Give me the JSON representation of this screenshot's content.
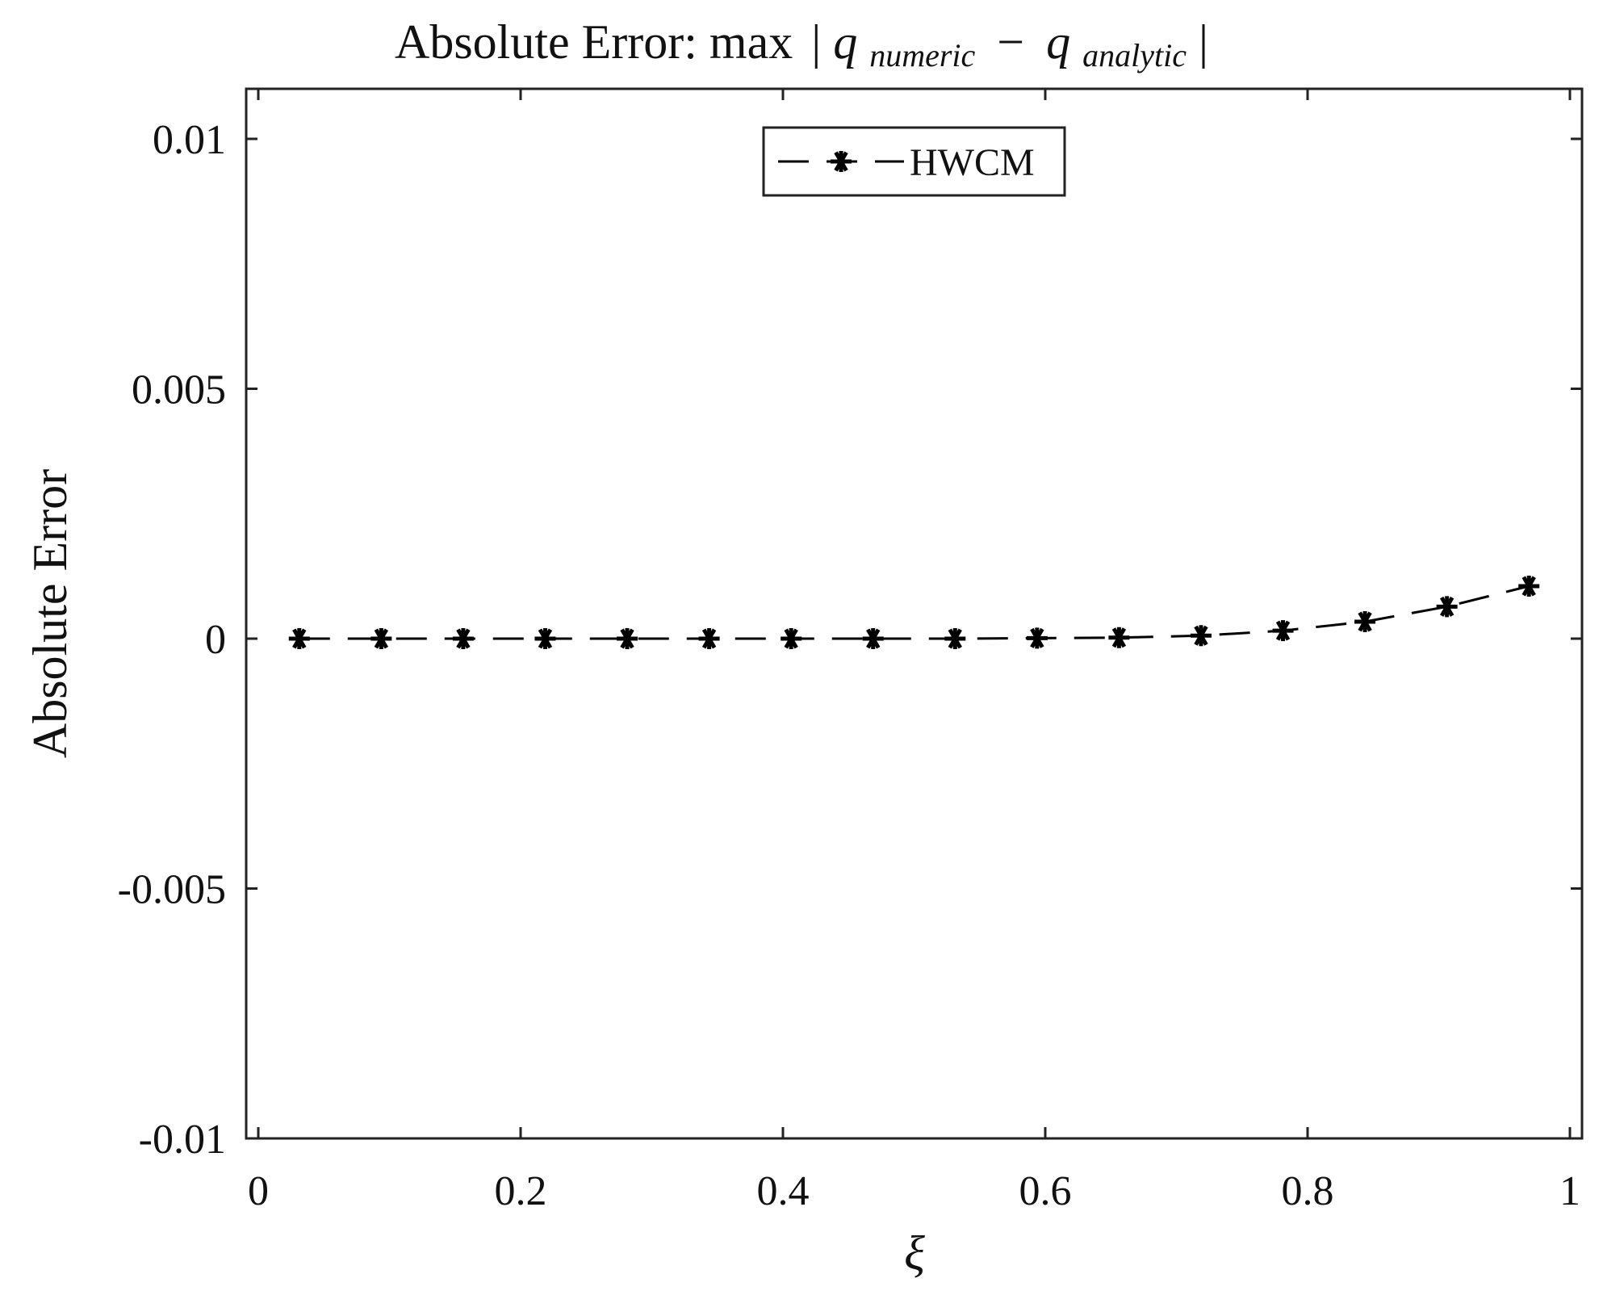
{
  "chart_data": {
    "type": "line",
    "title": "Absolute Error: max",
    "title_math": {
      "var": "q",
      "sub1": "numeric",
      "op": "−",
      "sub2": "analytic"
    },
    "xlabel": "ξ",
    "ylabel": "Absolute Error",
    "xlim": [
      0,
      1
    ],
    "ylim": [
      -0.01,
      0.01
    ],
    "xticks": [
      "0",
      "0.2",
      "0.4",
      "0.6",
      "0.8",
      "1"
    ],
    "xtick_values": [
      0,
      0.2,
      0.4,
      0.6,
      0.8,
      1
    ],
    "yticks": [
      "-0.01",
      "-0.005",
      "0",
      "0.005",
      "0.01"
    ],
    "ytick_values": [
      -0.01,
      -0.005,
      0,
      0.005,
      0.01
    ],
    "grid": false,
    "legend_position": "top-center",
    "series": [
      {
        "name": "HWCM",
        "color": "#000000",
        "line_style": "dashed",
        "marker": "asterisk",
        "x": [
          0.03125,
          0.09375,
          0.15625,
          0.21875,
          0.28125,
          0.34375,
          0.40625,
          0.46875,
          0.53125,
          0.59375,
          0.65625,
          0.71875,
          0.78125,
          0.84375,
          0.90625,
          0.96875
        ],
        "y": [
          0,
          0,
          0,
          0,
          0,
          0,
          0,
          0,
          0,
          1e-05,
          2e-05,
          6e-05,
          0.00016,
          0.00034,
          0.00064,
          0.00105
        ]
      }
    ]
  }
}
